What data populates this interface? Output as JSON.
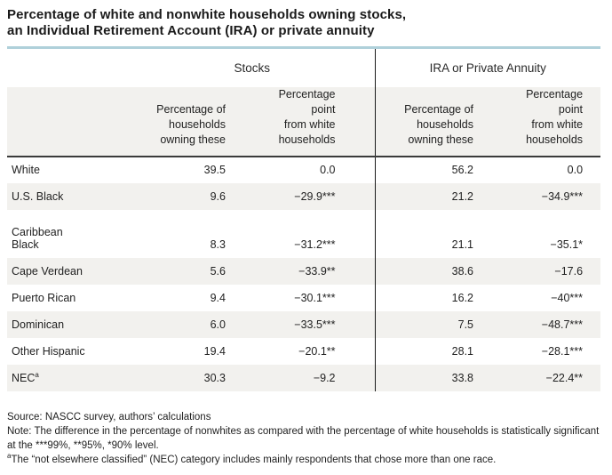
{
  "colors": {
    "accent-blue": "#afd0da",
    "stripe": "#f2f1ee",
    "rule-dark": "#3b3b3b",
    "divider": "#1a1a1a"
  },
  "title": "Percentage of white and nonwhite households owning stocks,\nan Individual Retirement Account (IRA) or private annuity",
  "table": {
    "group_headers": {
      "stocks": "Stocks",
      "ira": "IRA or Private Annuity"
    },
    "column_headers": [
      "Percentage of\nhouseholds\nowning these",
      "Percentage\npoint\nfrom white\nhouseholds",
      "Percentage of\nhouseholds\nowning these",
      "Percentage\npoint\nfrom white\nhouseholds"
    ],
    "rows": [
      {
        "label": "White",
        "stocks_pct": "39.5",
        "stocks_diff": "0.0",
        "ira_pct": "56.2",
        "ira_diff": "0.0"
      },
      {
        "label": "U.S. Black",
        "stocks_pct": "9.6",
        "stocks_diff": "−29.9***",
        "ira_pct": "21.2",
        "ira_diff": "−34.9***"
      },
      {
        "label": "Caribbean\nBlack",
        "stocks_pct": "8.3",
        "stocks_diff": "−31.2***",
        "ira_pct": "21.1",
        "ira_diff": "−35.1*"
      },
      {
        "label": "Cape Verdean",
        "stocks_pct": "5.6",
        "stocks_diff": "−33.9**",
        "ira_pct": "38.6",
        "ira_diff": "−17.6"
      },
      {
        "label": "Puerto Rican",
        "stocks_pct": "9.4",
        "stocks_diff": "−30.1***",
        "ira_pct": "16.2",
        "ira_diff": "−40***"
      },
      {
        "label": "Dominican",
        "stocks_pct": "6.0",
        "stocks_diff": "−33.5***",
        "ira_pct": "7.5",
        "ira_diff": "−48.7***"
      },
      {
        "label": "Other Hispanic",
        "stocks_pct": "19.4",
        "stocks_diff": "−20.1**",
        "ira_pct": "28.1",
        "ira_diff": "−28.1***"
      },
      {
        "label": "NEC",
        "label_sup": "a",
        "stocks_pct": "30.3",
        "stocks_diff": "−9.2",
        "ira_pct": "33.8",
        "ira_diff": "−22.4**"
      }
    ]
  },
  "footer": {
    "source": "Source: NASCC survey, authors’ calculations",
    "note": "Note: The difference in the percentage of nonwhites as compared with the percentage of white households is statistically significant at the ***99%, **95%, *90% level.",
    "footnote_marker": "a",
    "footnote": "The “not elsewhere classified” (NEC) category includes mainly respondents that chose more than one race."
  }
}
